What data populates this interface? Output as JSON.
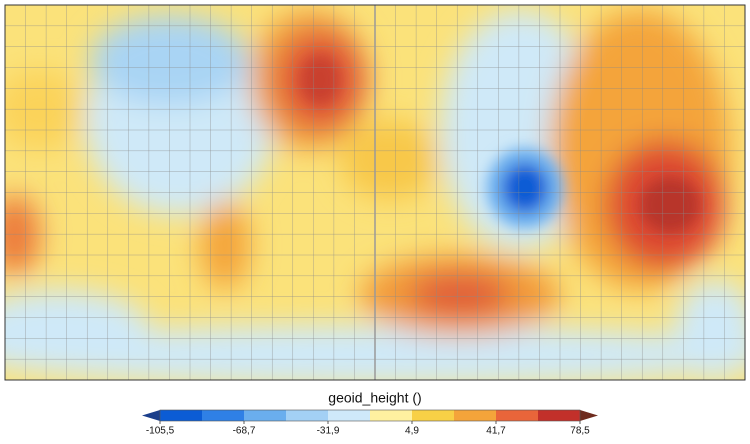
{
  "colorbar": {
    "label": "geoid_height ()",
    "ticks": [
      {
        "value": -105.5,
        "label": "-105,5"
      },
      {
        "value": -68.7,
        "label": "-68,7"
      },
      {
        "value": -31.9,
        "label": "-31,9"
      },
      {
        "value": 4.9,
        "label": "4,9"
      },
      {
        "value": 41.7,
        "label": "41,7"
      },
      {
        "value": 78.5,
        "label": "78,5"
      }
    ],
    "colors": [
      "#0b5cd5",
      "#2f80e6",
      "#6aaeee",
      "#a3d0f5",
      "#cfe9fa",
      "#fff1a0",
      "#f8d046",
      "#f4a43a",
      "#e9653a",
      "#c2302a"
    ],
    "under_color": "#1b3f8b",
    "over_color": "#6e2b1e"
  }
}
